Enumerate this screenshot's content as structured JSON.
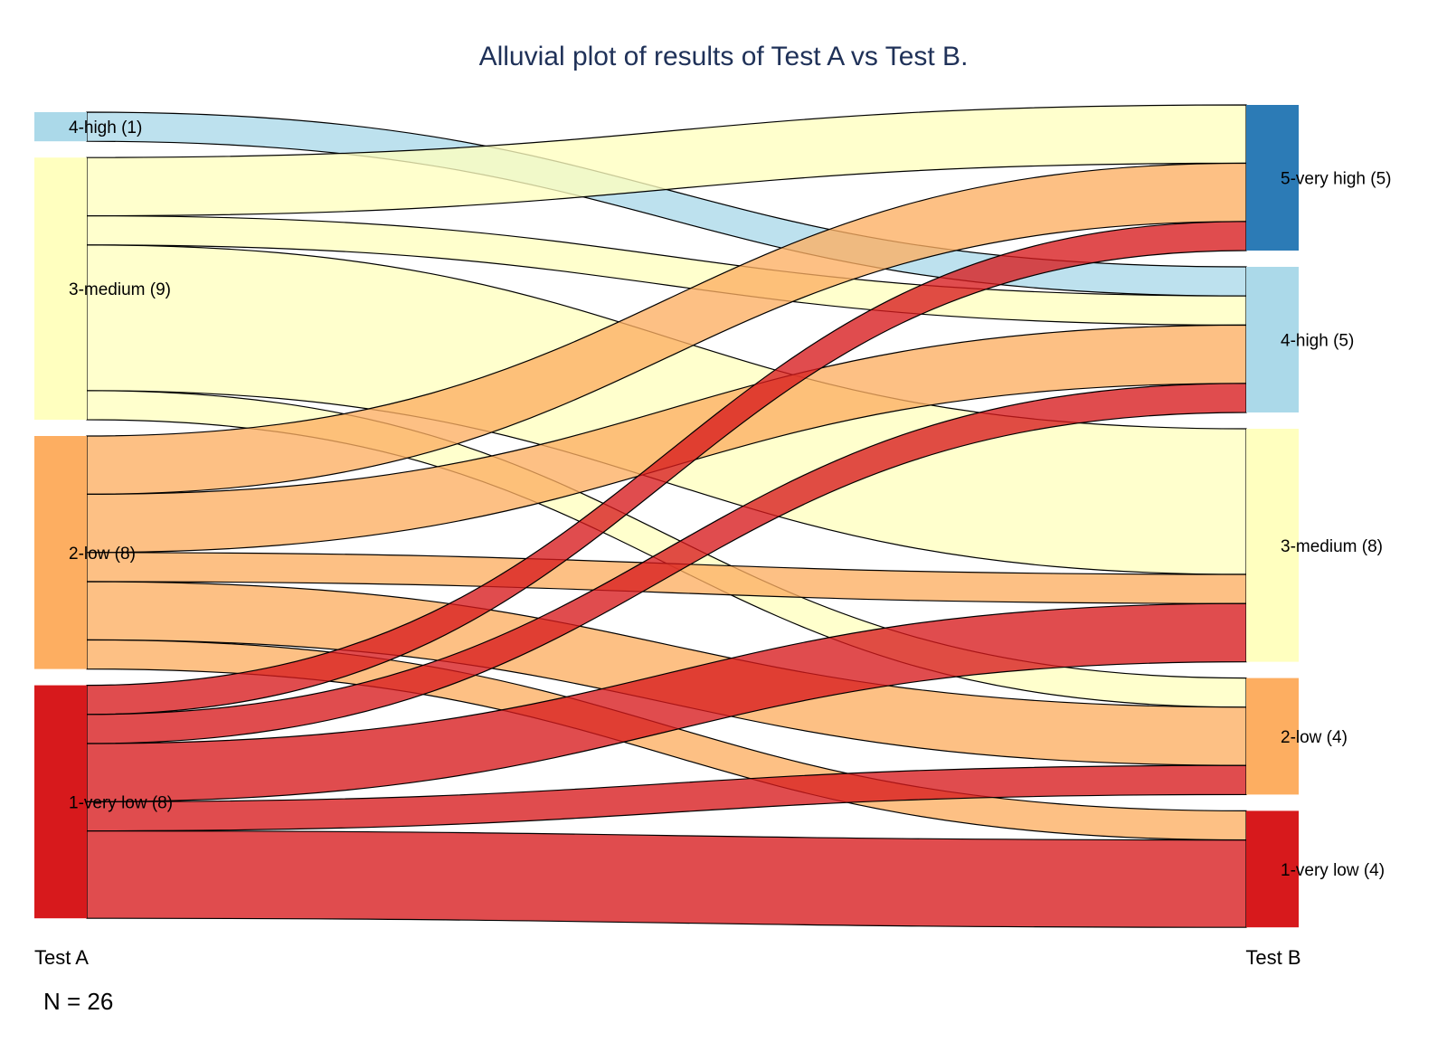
{
  "chart_data": {
    "type": "alluvial",
    "title": "Alluvial plot of results of Test A vs Test B.",
    "axes": [
      "Test A",
      "Test B"
    ],
    "n_label": "N = 26",
    "total": 26,
    "categories": [
      "5-very high",
      "4-high",
      "3-medium",
      "2-low",
      "1-very low"
    ],
    "colors": {
      "5-very high": "#2c7bb6",
      "4-high": "#abd9e9",
      "3-medium": "#ffffbf",
      "2-low": "#fdae61",
      "1-very low": "#d7191c"
    },
    "nodes": {
      "test_a": [
        {
          "category": "4-high",
          "count": 1,
          "label": "4-high (1)"
        },
        {
          "category": "3-medium",
          "count": 9,
          "label": "3-medium (9)"
        },
        {
          "category": "2-low",
          "count": 8,
          "label": "2-low (8)"
        },
        {
          "category": "1-very low",
          "count": 8,
          "label": "1-very low (8)"
        }
      ],
      "test_b": [
        {
          "category": "5-very high",
          "count": 5,
          "label": "5-very high (5)"
        },
        {
          "category": "4-high",
          "count": 5,
          "label": "4-high (5)"
        },
        {
          "category": "3-medium",
          "count": 8,
          "label": "3-medium (8)"
        },
        {
          "category": "2-low",
          "count": 4,
          "label": "2-low (4)"
        },
        {
          "category": "1-very low",
          "count": 4,
          "label": "1-very low (4)"
        }
      ]
    },
    "flows": [
      {
        "from": "4-high",
        "to": "4-high",
        "count": 1
      },
      {
        "from": "3-medium",
        "to": "5-very high",
        "count": 2
      },
      {
        "from": "3-medium",
        "to": "4-high",
        "count": 1
      },
      {
        "from": "3-medium",
        "to": "3-medium",
        "count": 5
      },
      {
        "from": "3-medium",
        "to": "2-low",
        "count": 1
      },
      {
        "from": "2-low",
        "to": "5-very high",
        "count": 2
      },
      {
        "from": "2-low",
        "to": "4-high",
        "count": 2
      },
      {
        "from": "2-low",
        "to": "3-medium",
        "count": 1
      },
      {
        "from": "2-low",
        "to": "2-low",
        "count": 2
      },
      {
        "from": "2-low",
        "to": "1-very low",
        "count": 1
      },
      {
        "from": "1-very low",
        "to": "5-very high",
        "count": 1
      },
      {
        "from": "1-very low",
        "to": "4-high",
        "count": 1
      },
      {
        "from": "1-very low",
        "to": "3-medium",
        "count": 2
      },
      {
        "from": "1-very low",
        "to": "2-low",
        "count": 1
      },
      {
        "from": "1-very low",
        "to": "1-very low",
        "count": 3
      }
    ]
  }
}
